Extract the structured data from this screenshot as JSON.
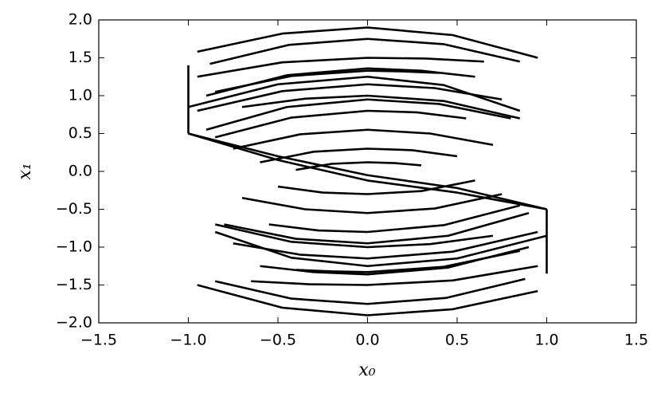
{
  "chart_data": {
    "type": "line",
    "x_label": "x₀",
    "y_label": "x₁",
    "color": "#000000",
    "xlim": [
      -1.5,
      1.5
    ],
    "ylim": [
      -2.0,
      2.0
    ],
    "xticks": [
      {
        "value": -1.5,
        "label": "−1.5"
      },
      {
        "value": -1.0,
        "label": "−1.0"
      },
      {
        "value": -0.5,
        "label": "−0.5"
      },
      {
        "value": 0,
        "label": "0.0"
      },
      {
        "value": 0.5,
        "label": "0.5"
      },
      {
        "value": 1.0,
        "label": "1.0"
      },
      {
        "value": 1.5,
        "label": "1.5"
      }
    ],
    "yticks": [
      {
        "value": -2.0,
        "label": "−2.0"
      },
      {
        "value": -1.5,
        "label": "−1.5"
      },
      {
        "value": -1.0,
        "label": "−1.0"
      },
      {
        "value": -0.5,
        "label": "−0.5"
      },
      {
        "value": 0,
        "label": "0.0"
      },
      {
        "value": 0.5,
        "label": "0.5"
      },
      {
        "value": 1.0,
        "label": "1.0"
      },
      {
        "value": 1.5,
        "label": "1.5"
      },
      {
        "value": 2.0,
        "label": "2.0"
      }
    ],
    "series": [
      {
        "x": [
          -0.95,
          -0.475,
          0,
          0.475,
          0.95
        ],
        "values": [
          1.58,
          1.82,
          1.9,
          1.8,
          1.5
        ]
      },
      {
        "x": [
          -0.88,
          -0.44,
          0,
          0.425,
          0.85
        ],
        "values": [
          1.42,
          1.67,
          1.75,
          1.68,
          1.45
        ]
      },
      {
        "x": [
          -0.9,
          -0.45,
          0,
          0.3,
          0.6
        ],
        "values": [
          1.0,
          1.27,
          1.36,
          1.33,
          1.25
        ]
      },
      {
        "x": [
          -0.85,
          -0.425,
          0,
          0.2,
          0.4
        ],
        "values": [
          1.05,
          1.26,
          1.33,
          1.32,
          1.3
        ]
      },
      {
        "x": [
          -1.0,
          -0.5,
          0,
          0.425,
          0.85
        ],
        "values": [
          0.85,
          1.15,
          1.25,
          1.14,
          0.8
        ]
      },
      {
        "x": [
          -0.95,
          -0.475,
          0,
          0.375,
          0.75
        ],
        "values": [
          0.8,
          1.06,
          1.15,
          1.1,
          0.95
        ]
      },
      {
        "x": [
          -0.9,
          -0.45,
          0,
          0.4,
          0.8
        ],
        "values": [
          0.55,
          0.85,
          0.95,
          0.89,
          0.7
        ]
      },
      {
        "x": [
          -0.85,
          -0.425,
          0,
          0.275,
          0.55
        ],
        "values": [
          0.45,
          0.71,
          0.8,
          0.78,
          0.7
        ]
      },
      {
        "x": [
          -0.75,
          -0.375,
          0,
          0.35,
          0.7
        ],
        "values": [
          0.3,
          0.49,
          0.55,
          0.5,
          0.35
        ]
      },
      {
        "x": [
          -0.6,
          -0.3,
          0,
          0.25,
          0.5
        ],
        "values": [
          0.12,
          0.26,
          0.3,
          0.28,
          0.2
        ]
      },
      {
        "x": [
          -0.4,
          -0.2,
          0,
          0.15,
          0.3
        ],
        "values": [
          0.02,
          0.1,
          0.12,
          0.11,
          0.08
        ]
      },
      {
        "x": [
          -0.95,
          -0.475,
          0,
          0.325,
          0.65
        ],
        "values": [
          1.25,
          1.44,
          1.5,
          1.49,
          1.45
        ]
      },
      {
        "x": [
          -0.7,
          -0.35,
          0,
          0.425,
          0.85
        ],
        "values": [
          0.85,
          0.96,
          1.0,
          0.93,
          0.7
        ]
      },
      {
        "x": [
          -0.95,
          -0.475,
          0,
          0.475,
          0.95
        ],
        "values": [
          -1.5,
          -1.8,
          -1.9,
          -1.82,
          -1.58
        ]
      },
      {
        "x": [
          -0.85,
          -0.425,
          0,
          0.44,
          0.88
        ],
        "values": [
          -1.45,
          -1.68,
          -1.75,
          -1.67,
          -1.42
        ]
      },
      {
        "x": [
          -0.6,
          -0.3,
          0,
          0.45,
          0.9
        ],
        "values": [
          -1.25,
          -1.33,
          -1.36,
          -1.27,
          -1.0
        ]
      },
      {
        "x": [
          -0.4,
          -0.2,
          0,
          0.425,
          0.85
        ],
        "values": [
          -1.3,
          -1.32,
          -1.33,
          -1.26,
          -1.05
        ]
      },
      {
        "x": [
          -0.85,
          -0.425,
          0,
          0.5,
          1.0
        ],
        "values": [
          -0.8,
          -1.14,
          -1.25,
          -1.15,
          -0.85
        ]
      },
      {
        "x": [
          -0.75,
          -0.375,
          0,
          0.475,
          0.95
        ],
        "values": [
          -0.95,
          -1.1,
          -1.15,
          -1.06,
          -0.8
        ]
      },
      {
        "x": [
          -0.8,
          -0.4,
          0,
          0.45,
          0.9
        ],
        "values": [
          -0.7,
          -0.89,
          -0.95,
          -0.85,
          -0.55
        ]
      },
      {
        "x": [
          -0.55,
          -0.275,
          0,
          0.425,
          0.85
        ],
        "values": [
          -0.7,
          -0.78,
          -0.8,
          -0.71,
          -0.45
        ]
      },
      {
        "x": [
          -0.7,
          -0.35,
          0,
          0.375,
          0.75
        ],
        "values": [
          -0.35,
          -0.5,
          -0.55,
          -0.49,
          -0.3
        ]
      },
      {
        "x": [
          -0.5,
          -0.25,
          0,
          0.3,
          0.6
        ],
        "values": [
          -0.2,
          -0.28,
          -0.3,
          -0.26,
          -0.12
        ]
      },
      {
        "x": [
          -0.65,
          -0.325,
          0,
          0.475,
          0.95
        ],
        "values": [
          -1.45,
          -1.49,
          -1.5,
          -1.44,
          -1.25
        ]
      },
      {
        "x": [
          -0.85,
          -0.425,
          0,
          0.35,
          0.7
        ],
        "values": [
          -0.7,
          -0.93,
          -1.0,
          -0.96,
          -0.85
        ]
      },
      {
        "x": [
          -1.0,
          -0.5,
          0,
          0.5,
          1.0
        ],
        "values": [
          0.5,
          0.2,
          -0.05,
          -0.22,
          -0.5
        ]
      },
      {
        "x": [
          -1.0,
          -0.5,
          0,
          0.5,
          1.0
        ],
        "values": [
          0.5,
          0.15,
          -0.12,
          -0.28,
          -0.5
        ]
      },
      {
        "x": [
          -1.0,
          -1.0
        ],
        "values": [
          0.5,
          1.4
        ]
      },
      {
        "x": [
          1.0,
          1.0
        ],
        "values": [
          -0.5,
          -1.35
        ]
      }
    ]
  }
}
